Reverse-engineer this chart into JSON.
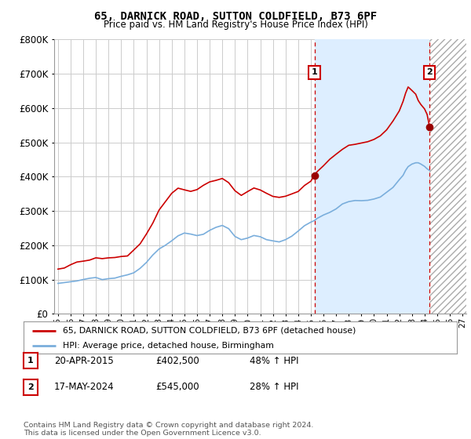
{
  "title": "65, DARNICK ROAD, SUTTON COLDFIELD, B73 6PF",
  "subtitle": "Price paid vs. HM Land Registry's House Price Index (HPI)",
  "legend_line1": "65, DARNICK ROAD, SUTTON COLDFIELD, B73 6PF (detached house)",
  "legend_line2": "HPI: Average price, detached house, Birmingham",
  "annotation1_label": "1",
  "annotation1_date": "20-APR-2015",
  "annotation1_price": "£402,500",
  "annotation1_hpi": "48% ↑ HPI",
  "annotation1_year": 2015.29,
  "annotation1_value": 402500,
  "annotation2_label": "2",
  "annotation2_date": "17-MAY-2024",
  "annotation2_price": "£545,000",
  "annotation2_hpi": "28% ↑ HPI",
  "annotation2_year": 2024.38,
  "annotation2_value": 545000,
  "footer": "Contains HM Land Registry data © Crown copyright and database right 2024.\nThis data is licensed under the Open Government Licence v3.0.",
  "red_line_color": "#cc0000",
  "blue_line_color": "#7aaedc",
  "point_color": "#990000",
  "dashed_line_color": "#cc0000",
  "background_color": "#ffffff",
  "plot_bg_color": "#ffffff",
  "grid_color": "#cccccc",
  "shade_color": "#ddeeff",
  "ylim": [
    0,
    800000
  ],
  "xlim_start": 1994.7,
  "xlim_end": 2027.3,
  "yticks": [
    0,
    100000,
    200000,
    300000,
    400000,
    500000,
    600000,
    700000,
    800000
  ],
  "xtick_years": [
    1995,
    1996,
    1997,
    1998,
    1999,
    2000,
    2001,
    2002,
    2003,
    2004,
    2005,
    2006,
    2007,
    2008,
    2009,
    2010,
    2011,
    2012,
    2013,
    2014,
    2015,
    2016,
    2017,
    2018,
    2019,
    2020,
    2021,
    2022,
    2023,
    2024,
    2025,
    2026,
    2027
  ]
}
